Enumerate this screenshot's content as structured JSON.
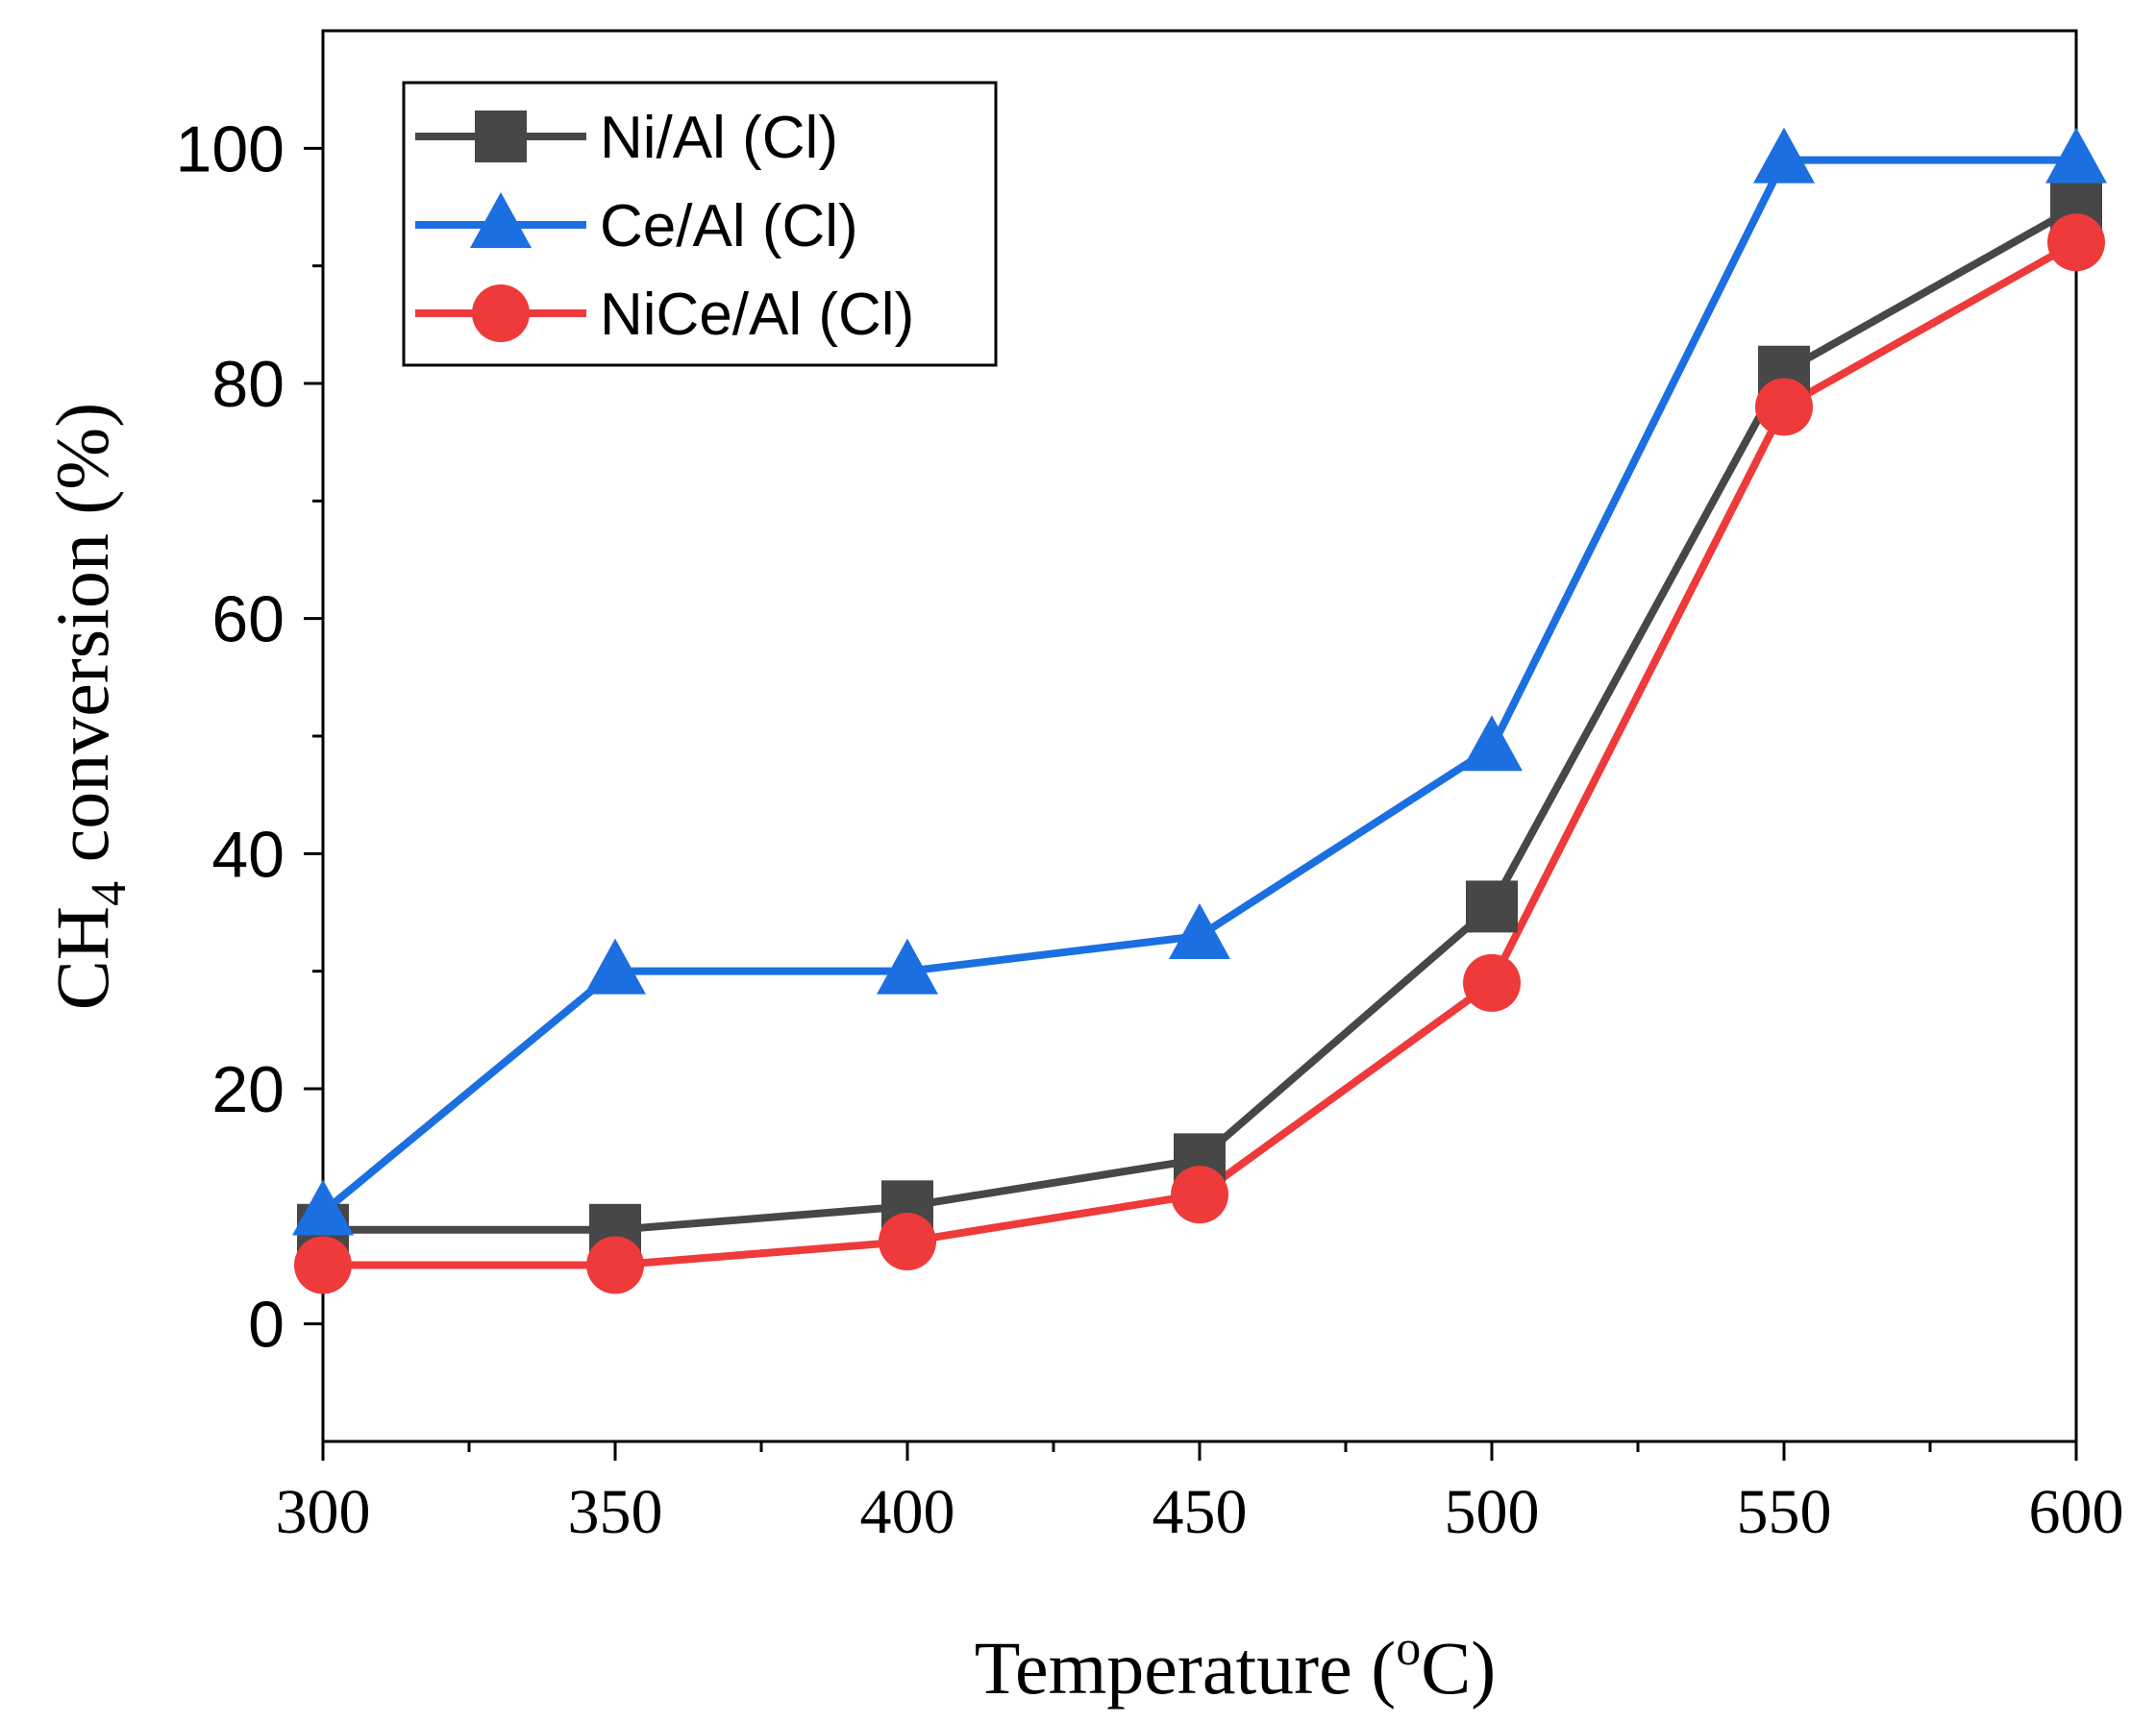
{
  "chart_data": {
    "type": "line",
    "title": "",
    "xlabel": {
      "prefix": "Temperature (",
      "superscript": "o",
      "suffix": "C)"
    },
    "ylabel": {
      "prefix": "CH",
      "subscript": "4",
      "suffix": " conversion (%)"
    },
    "xlim": [
      300,
      600
    ],
    "ylim": [
      -10,
      110
    ],
    "x_ticks": [
      300,
      350,
      400,
      450,
      500,
      550,
      600
    ],
    "x_tick_labels": [
      "300",
      "350",
      "400",
      "450",
      "500",
      "550",
      "600"
    ],
    "x_minor_ticks": [
      325,
      375,
      425,
      475,
      525,
      575
    ],
    "y_ticks": [
      0,
      20,
      40,
      60,
      80,
      100
    ],
    "y_tick_labels": [
      "0",
      "20",
      "40",
      "60",
      "80",
      "100"
    ],
    "y_minor_ticks": [
      10,
      30,
      50,
      70,
      90
    ],
    "grid": false,
    "legend_position": "top-left",
    "x": [
      300,
      350,
      400,
      450,
      500,
      550,
      600
    ],
    "series": [
      {
        "name": "Ni/Al (Cl)",
        "marker": "square",
        "color": "#474747",
        "values": [
          8,
          8,
          10,
          14,
          35.5,
          81,
          95
        ]
      },
      {
        "name": "Ce/Al (Cl)",
        "marker": "triangle",
        "color": "#1c6fe0",
        "values": [
          9.5,
          30,
          30,
          33,
          49,
          99,
          99
        ]
      },
      {
        "name": "NiCe/Al (Cl)",
        "marker": "circle",
        "color": "#ee3a3a",
        "values": [
          5,
          5,
          7,
          11,
          29,
          78,
          92
        ]
      }
    ]
  }
}
